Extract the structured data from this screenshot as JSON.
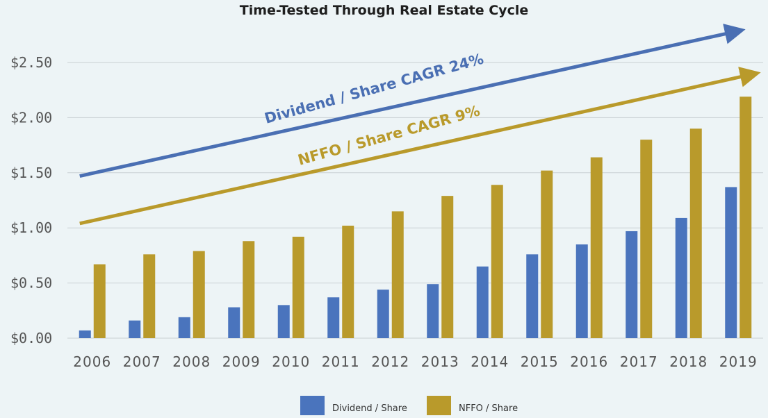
{
  "chart_data": {
    "type": "bar",
    "title": "Time-Tested Through Real Estate Cycle",
    "categories": [
      "2006",
      "2007",
      "2008",
      "2009",
      "2010",
      "2011",
      "2012",
      "2013",
      "2014",
      "2015",
      "2016",
      "2017",
      "2018",
      "2019"
    ],
    "series": [
      {
        "name": "Dividend / Share",
        "color": "#4a74bd",
        "values": [
          0.07,
          0.16,
          0.19,
          0.28,
          0.3,
          0.37,
          0.44,
          0.49,
          0.65,
          0.76,
          0.85,
          0.97,
          1.09,
          1.37
        ]
      },
      {
        "name": "NFFO / Share",
        "color": "#b99a2b",
        "values": [
          0.67,
          0.76,
          0.79,
          0.88,
          0.92,
          1.02,
          1.15,
          1.29,
          1.39,
          1.52,
          1.64,
          1.8,
          1.9,
          2.19
        ]
      }
    ],
    "yticks": [
      "$0.00",
      "$0.50",
      "$1.00",
      "$1.50",
      "$2.00",
      "$2.50"
    ],
    "ylim": [
      0,
      2.5
    ],
    "grid": true,
    "legend_position": "bottom",
    "annotations": [
      {
        "text": "Dividend / Share CAGR 24%",
        "color": "#4a6fb3"
      },
      {
        "text": "NFFO / Share CAGR 9%",
        "color": "#b99a2b"
      }
    ],
    "trend_arrows": [
      {
        "series": "Dividend / Share",
        "color": "#4a6fb3"
      },
      {
        "series": "NFFO / Share",
        "color": "#b99a2b"
      }
    ]
  }
}
